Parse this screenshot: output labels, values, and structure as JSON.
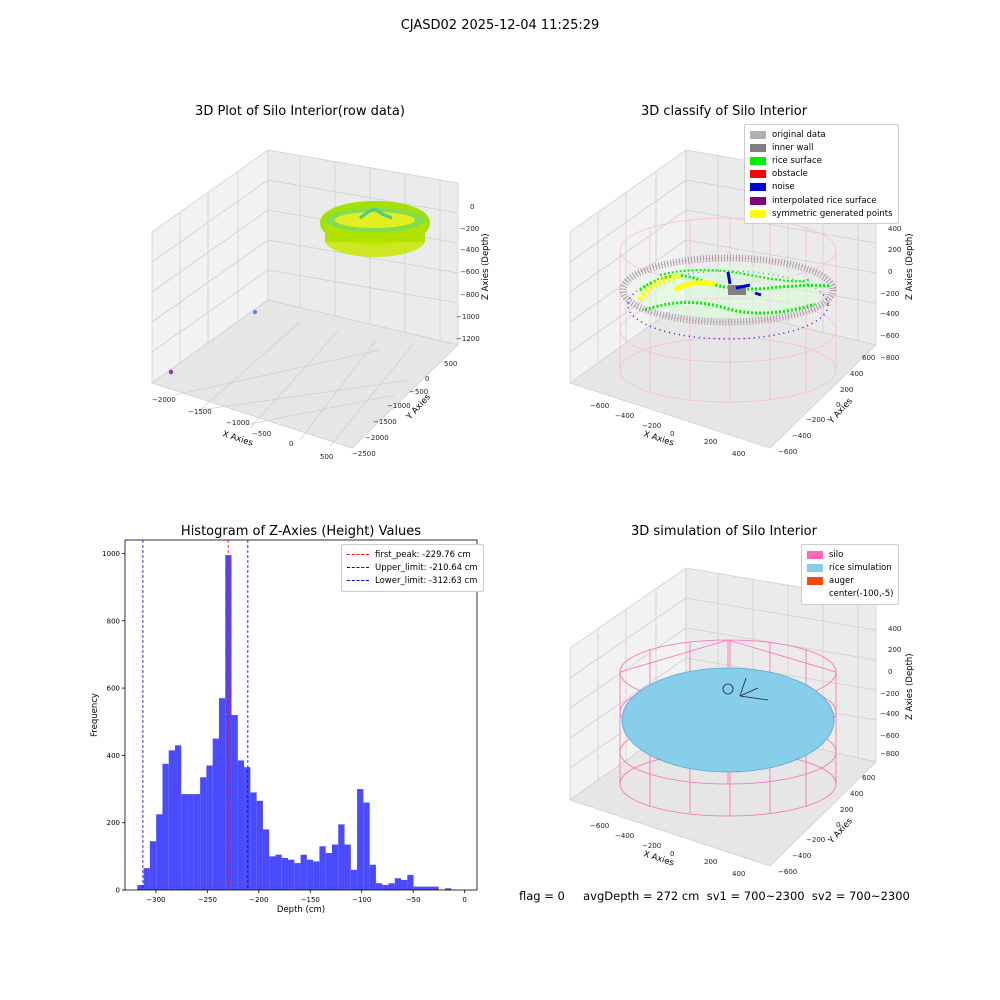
{
  "suptitle": "CJASD02 2025-12-04 11:25:29",
  "footer": "flag = 0     avgDepth = 272 cm  sv1 = 700~2300  sv2 = 700~2300",
  "colors": {
    "silo": "#ff69b4",
    "rice_surface": "#00ee00",
    "noise": "#0000dd",
    "inner_wall": "#808080",
    "original": "#b0b0b0",
    "obstacle": "#ff0000",
    "interpolated": "#800080",
    "symmetric": "#ffff00",
    "rice_simulation": "#87ceeb",
    "auger": "#ff4500",
    "histogram_bar": "#4a4aff"
  },
  "chart_data": [
    {
      "type": "scatter",
      "title": "3D Plot of Silo Interior(row data)",
      "xlabel": "X Axies",
      "ylabel": "Y Axies",
      "zlabel": "Z Axies (Depth)",
      "x_ticks": [
        "−2000",
        "−1500",
        "−1000",
        "−500",
        "0",
        "500"
      ],
      "y_ticks": [
        "500",
        "0",
        "−500",
        "−1000",
        "−1500",
        "−2000",
        "−2500"
      ],
      "z_ticks": [
        "0",
        "−200",
        "−400",
        "−600",
        "−800",
        "−1000",
        "−1200"
      ],
      "xlim": [
        -2100,
        600
      ],
      "ylim": [
        -2600,
        600
      ],
      "zlim": [
        -1250,
        0
      ]
    },
    {
      "type": "scatter",
      "title": "3D classify of Silo Interior",
      "xlabel": "X Axies",
      "ylabel": "Y Axies",
      "zlabel": "Z Axies (Depth)",
      "x_ticks": [
        "−600",
        "−400",
        "−200",
        "0",
        "200",
        "400"
      ],
      "y_ticks": [
        "600",
        "400",
        "200",
        "0",
        "−200",
        "−400",
        "−600"
      ],
      "z_ticks": [
        "400",
        "200",
        "0",
        "−200",
        "−400",
        "−600",
        "−800"
      ],
      "legend": [
        "original data",
        "inner wall",
        "rice surface",
        "obstacle",
        "noise",
        "interpolated rice surface",
        "symmetric generated points"
      ],
      "legend_colors": [
        "#b0b0b0",
        "#808080",
        "#00ee00",
        "#ff0000",
        "#0000dd",
        "#800080",
        "#ffff00"
      ]
    },
    {
      "type": "bar",
      "title": "Histogram of Z-Axies (Height) Values",
      "xlabel": "Depth (cm)",
      "ylabel": "Frequency",
      "xlim": [
        -330,
        12
      ],
      "ylim": [
        0,
        1040
      ],
      "x_ticks": [
        -300,
        -250,
        -200,
        -150,
        -100,
        -50,
        0
      ],
      "x_tick_labels": [
        "−300",
        "−250",
        "−200",
        "−150",
        "−100",
        "−50",
        "0"
      ],
      "y_ticks": [
        0,
        200,
        400,
        600,
        800,
        1000
      ],
      "bin_start": -318,
      "bin_width": 6.1,
      "values": [
        15,
        65,
        145,
        225,
        375,
        415,
        430,
        285,
        285,
        285,
        335,
        370,
        450,
        570,
        995,
        520,
        385,
        365,
        290,
        265,
        180,
        100,
        105,
        95,
        90,
        80,
        105,
        90,
        85,
        130,
        110,
        135,
        195,
        135,
        60,
        300,
        260,
        75,
        20,
        15,
        20,
        35,
        30,
        45,
        10,
        10,
        10,
        10,
        0,
        5
      ],
      "vlines": [
        {
          "label": "first_peak: -229.76 cm",
          "x": -229.76,
          "color": "#ff0000"
        },
        {
          "label": "Upper_limit: -210.64 cm",
          "x": -210.64,
          "color": "#0000cc"
        },
        {
          "label": "Lower_limit: -312.63 cm",
          "x": -312.63,
          "color": "#0000cc"
        }
      ]
    },
    {
      "type": "scatter",
      "title": "3D simulation of Silo Interior",
      "xlabel": "X Axies",
      "ylabel": "Y Axies",
      "zlabel": "Z Axies (Depth)",
      "x_ticks": [
        "−600",
        "−400",
        "−200",
        "0",
        "200",
        "400"
      ],
      "y_ticks": [
        "600",
        "400",
        "200",
        "0",
        "−200",
        "−400",
        "−600"
      ],
      "z_ticks": [
        "400",
        "200",
        "0",
        "−200",
        "−400",
        "−600",
        "−800"
      ],
      "legend": [
        "silo",
        "rice simulation",
        "auger",
        "center(-100,-5)"
      ],
      "legend_colors": [
        "#ff69b4",
        "#87ceeb",
        "#ff4500",
        "transparent"
      ]
    }
  ]
}
